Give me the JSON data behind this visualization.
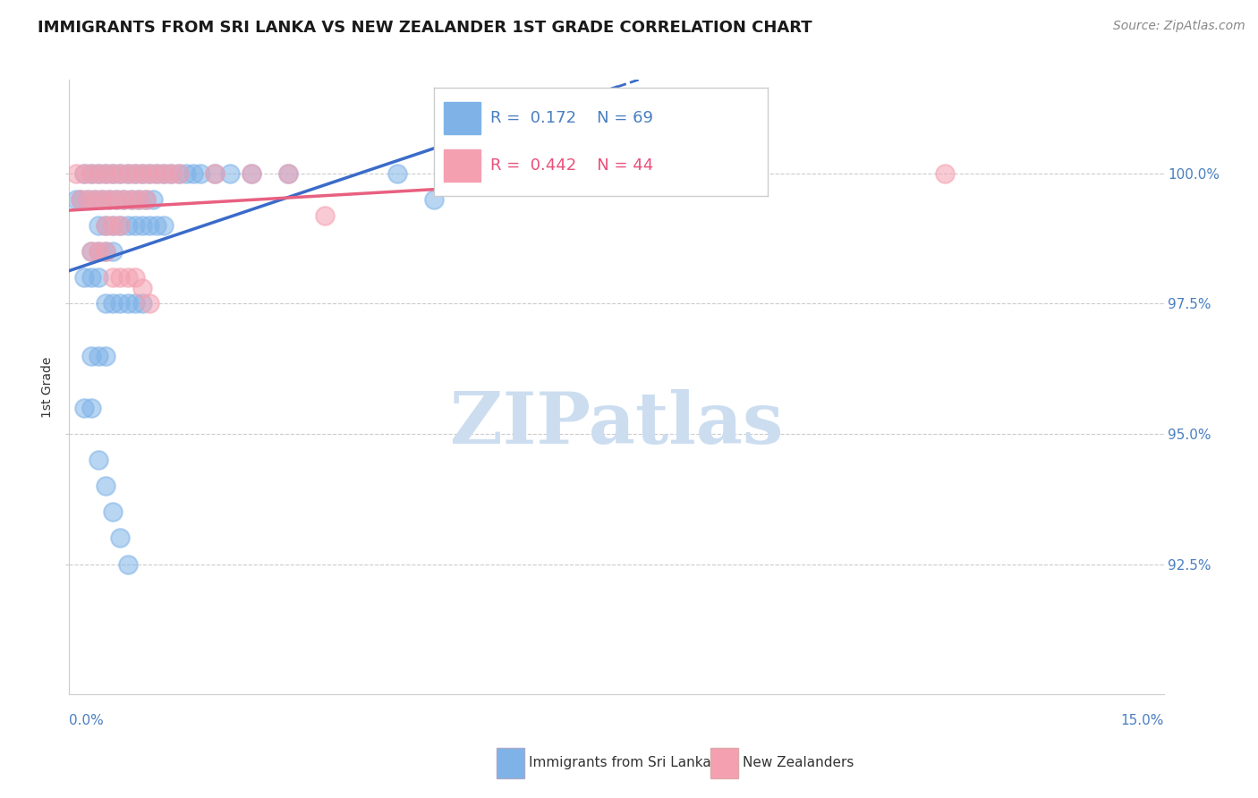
{
  "title": "IMMIGRANTS FROM SRI LANKA VS NEW ZEALANDER 1ST GRADE CORRELATION CHART",
  "source": "Source: ZipAtlas.com",
  "ylabel": "1st Grade",
  "xmin": 0.0,
  "xmax": 15.0,
  "ymin": 90.0,
  "ymax": 101.8,
  "r_blue": 0.172,
  "n_blue": 69,
  "r_pink": 0.442,
  "n_pink": 44,
  "blue_color": "#7fb3e8",
  "pink_color": "#f4a0b0",
  "blue_line_color": "#3a6bc9",
  "pink_line_color": "#e86080",
  "legend_label_blue": "Immigrants from Sri Lanka",
  "legend_label_pink": "New Zealanders",
  "blue_scatter_x": [
    0.2,
    0.3,
    0.4,
    0.5,
    0.6,
    0.7,
    0.8,
    0.9,
    1.0,
    1.1,
    1.2,
    1.3,
    1.4,
    1.5,
    1.6,
    1.7,
    1.8,
    2.0,
    2.2,
    2.5,
    3.0,
    0.1,
    0.15,
    0.25,
    0.35,
    0.45,
    0.55,
    0.65,
    0.75,
    0.85,
    0.95,
    1.05,
    1.15,
    0.4,
    0.5,
    0.6,
    0.7,
    0.8,
    0.9,
    1.0,
    1.1,
    1.2,
    1.3,
    0.3,
    0.4,
    0.5,
    0.6,
    4.5,
    5.0,
    7.0,
    0.2,
    0.3,
    0.4,
    0.5,
    0.6,
    0.7,
    0.8,
    0.9,
    1.0,
    0.3,
    0.4,
    0.5,
    0.2,
    0.3,
    0.4,
    0.5,
    0.6,
    0.7,
    0.8
  ],
  "blue_scatter_y": [
    100.0,
    100.0,
    100.0,
    100.0,
    100.0,
    100.0,
    100.0,
    100.0,
    100.0,
    100.0,
    100.0,
    100.0,
    100.0,
    100.0,
    100.0,
    100.0,
    100.0,
    100.0,
    100.0,
    100.0,
    100.0,
    99.5,
    99.5,
    99.5,
    99.5,
    99.5,
    99.5,
    99.5,
    99.5,
    99.5,
    99.5,
    99.5,
    99.5,
    99.0,
    99.0,
    99.0,
    99.0,
    99.0,
    99.0,
    99.0,
    99.0,
    99.0,
    99.0,
    98.5,
    98.5,
    98.5,
    98.5,
    100.0,
    99.5,
    100.0,
    98.0,
    98.0,
    98.0,
    97.5,
    97.5,
    97.5,
    97.5,
    97.5,
    97.5,
    96.5,
    96.5,
    96.5,
    95.5,
    95.5,
    94.5,
    94.0,
    93.5,
    93.0,
    92.5
  ],
  "pink_scatter_x": [
    0.1,
    0.2,
    0.3,
    0.4,
    0.5,
    0.6,
    0.7,
    0.8,
    0.9,
    1.0,
    1.1,
    1.2,
    1.3,
    1.4,
    1.5,
    2.0,
    2.5,
    3.0,
    0.15,
    0.25,
    0.35,
    0.45,
    0.55,
    0.65,
    0.75,
    0.85,
    0.95,
    1.05,
    0.5,
    0.6,
    0.7,
    3.5,
    5.5,
    8.5,
    12.0,
    0.3,
    0.4,
    0.5,
    0.6,
    0.7,
    0.8,
    0.9,
    1.0,
    1.1
  ],
  "pink_scatter_y": [
    100.0,
    100.0,
    100.0,
    100.0,
    100.0,
    100.0,
    100.0,
    100.0,
    100.0,
    100.0,
    100.0,
    100.0,
    100.0,
    100.0,
    100.0,
    100.0,
    100.0,
    100.0,
    99.5,
    99.5,
    99.5,
    99.5,
    99.5,
    99.5,
    99.5,
    99.5,
    99.5,
    99.5,
    99.0,
    99.0,
    99.0,
    99.2,
    100.0,
    100.0,
    100.0,
    98.5,
    98.5,
    98.5,
    98.0,
    98.0,
    98.0,
    98.0,
    97.8,
    97.5
  ],
  "watermark_text": "ZIPatlas",
  "watermark_color": "#ccddf0",
  "ytick_vals": [
    92.5,
    95.0,
    97.5,
    100.0
  ]
}
